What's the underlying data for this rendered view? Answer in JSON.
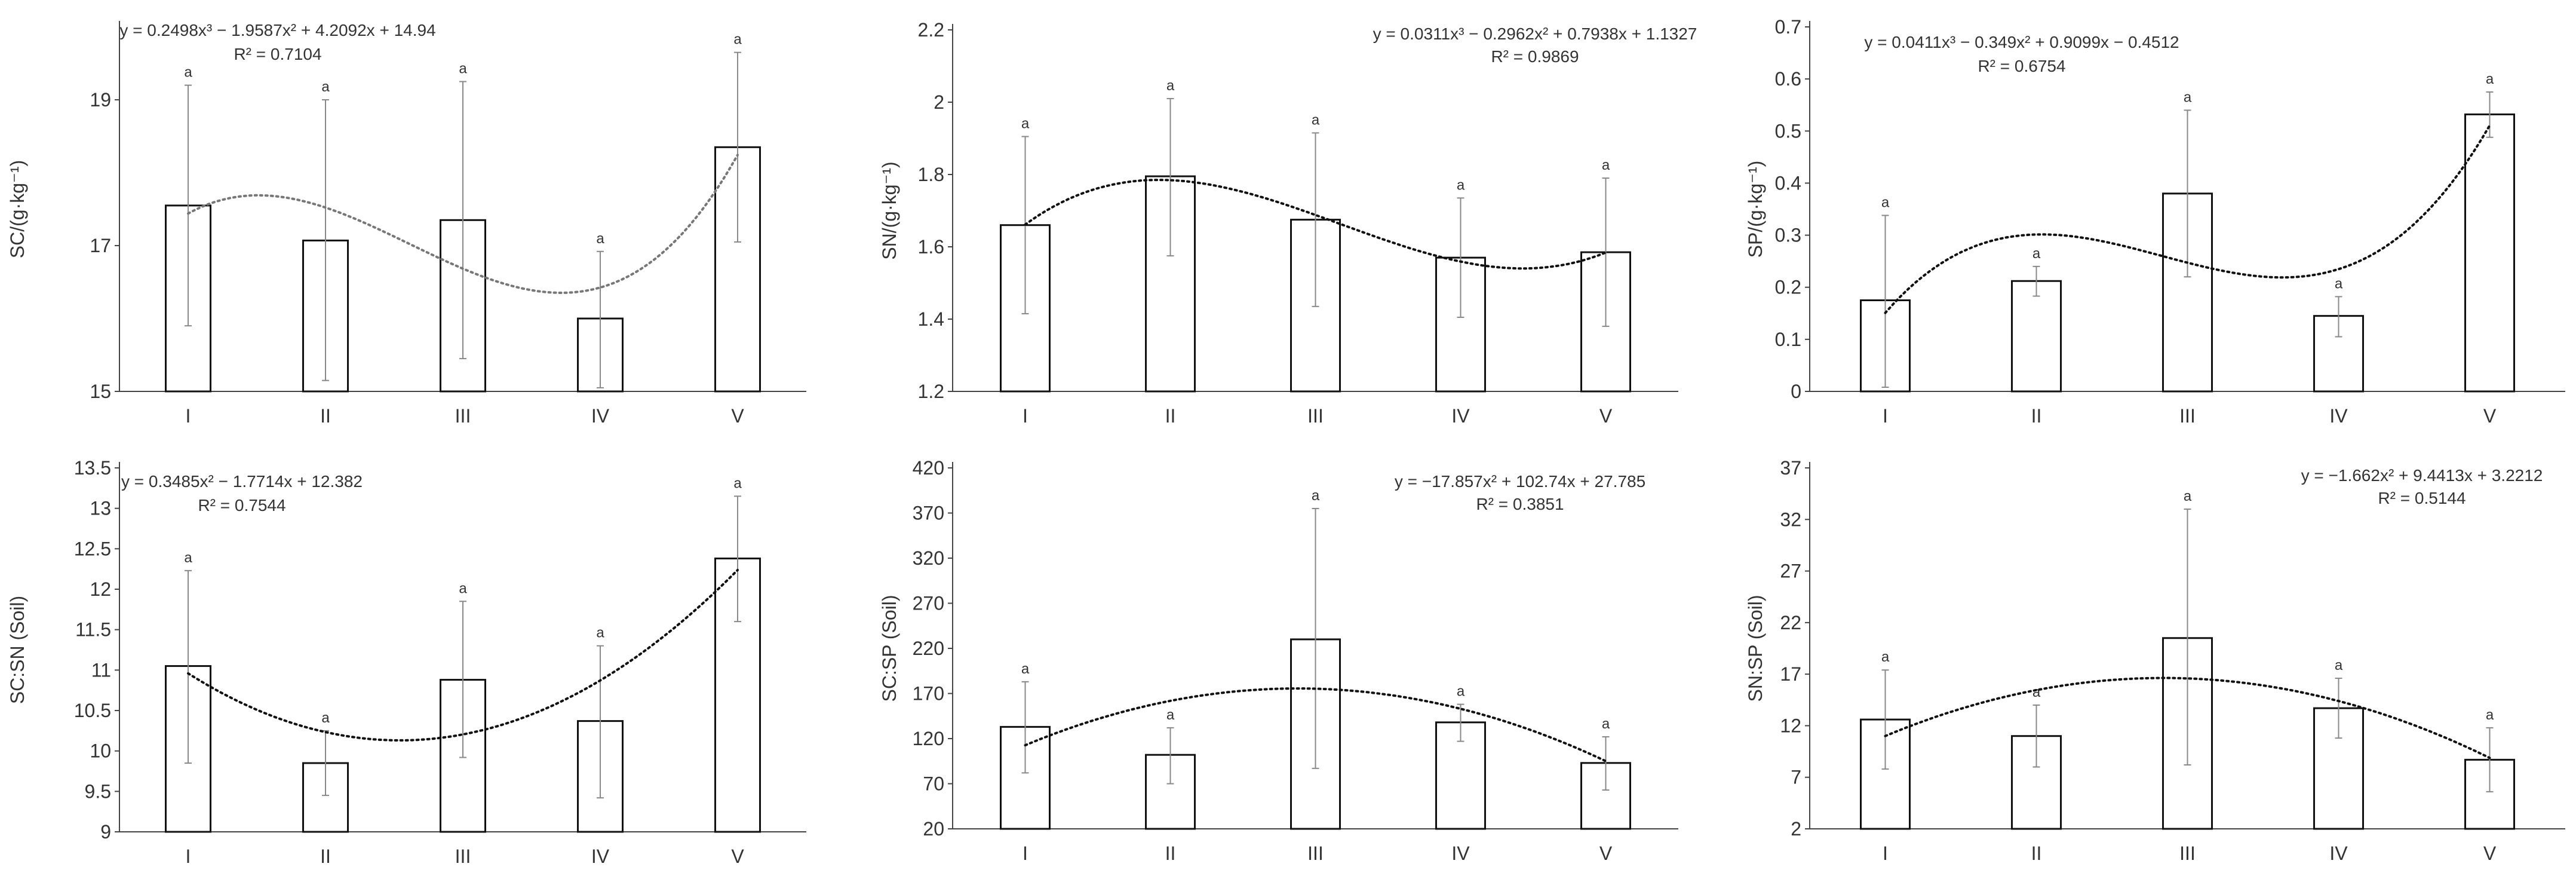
{
  "chart_data": [
    {
      "type": "bar",
      "ylabel": "SC/(g·kg⁻¹)",
      "categories": [
        "I",
        "II",
        "III",
        "IV",
        "V"
      ],
      "values": [
        17.55,
        17.07,
        17.35,
        16.0,
        18.35
      ],
      "error_upper": [
        19.2,
        19.0,
        19.25,
        16.92,
        19.65
      ],
      "error_lower": [
        15.9,
        15.15,
        15.45,
        15.05,
        17.05
      ],
      "sig_letters": [
        "a",
        "a",
        "a",
        "a",
        "a"
      ],
      "ylim": [
        15,
        20
      ],
      "yticks": [
        "15",
        "17",
        "19"
      ],
      "ytick_values": [
        15,
        17,
        19
      ],
      "trend": {
        "degree": 3,
        "coefficients": [
          14.94,
          4.2092,
          -1.9587,
          0.2498
        ],
        "color": "#777777"
      },
      "equation": "y = 0.2498x³ − 1.9587x² + 4.2092x + 14.94",
      "r2": "R² = 0.7104"
    },
    {
      "type": "bar",
      "ylabel": "SN/(g·kg⁻¹)",
      "categories": [
        "I",
        "II",
        "III",
        "IV",
        "V"
      ],
      "values": [
        1.66,
        1.795,
        1.675,
        1.57,
        1.585
      ],
      "error_upper": [
        1.905,
        2.01,
        1.915,
        1.735,
        1.79
      ],
      "error_lower": [
        1.415,
        1.575,
        1.435,
        1.405,
        1.38
      ],
      "sig_letters": [
        "a",
        "a",
        "a",
        "a",
        "a"
      ],
      "ylim": [
        1.2,
        2.2
      ],
      "yticks": [
        "1.2",
        "1.4",
        "1.6",
        "1.8",
        "2",
        "2.2"
      ],
      "ytick_values": [
        1.2,
        1.4,
        1.6,
        1.8,
        2.0,
        2.2
      ],
      "trend": {
        "degree": 3,
        "coefficients": [
          1.1327,
          0.7938,
          -0.2962,
          0.0311
        ],
        "color": "#111111"
      },
      "equation": "y = 0.0311x³ − 0.2962x² + 0.7938x + 1.1327",
      "r2": "R² = 0.9869"
    },
    {
      "type": "bar",
      "ylabel": "SP/(g·kg⁻¹)",
      "categories": [
        "I",
        "II",
        "III",
        "IV",
        "V"
      ],
      "values": [
        0.175,
        0.212,
        0.38,
        0.145,
        0.532
      ],
      "error_upper": [
        0.338,
        0.24,
        0.54,
        0.182,
        0.575
      ],
      "error_lower": [
        0.008,
        0.183,
        0.22,
        0.105,
        0.488
      ],
      "sig_letters": [
        "a",
        "a",
        "a",
        "a",
        "a"
      ],
      "ylim": [
        0,
        0.7
      ],
      "yticks": [
        "0",
        "0.1",
        "0.2",
        "0.3",
        "0.4",
        "0.5",
        "0.6",
        "0.7"
      ],
      "ytick_values": [
        0,
        0.1,
        0.2,
        0.3,
        0.4,
        0.5,
        0.6,
        0.7
      ],
      "trend": {
        "degree": 3,
        "coefficients": [
          -0.4512,
          0.9099,
          -0.349,
          0.0411
        ],
        "color": "#111111"
      },
      "equation": "y = 0.0411x³ − 0.349x² + 0.9099x − 0.4512",
      "r2": "R² = 0.6754"
    },
    {
      "type": "bar",
      "ylabel": "SC:SN (Soil)",
      "categories": [
        "I",
        "II",
        "III",
        "IV",
        "V"
      ],
      "values": [
        11.05,
        9.85,
        10.88,
        10.37,
        12.38
      ],
      "error_upper": [
        12.23,
        10.25,
        11.85,
        11.3,
        13.15
      ],
      "error_lower": [
        9.85,
        9.45,
        9.92,
        9.42,
        11.6
      ],
      "sig_letters": [
        "a",
        "a",
        "a",
        "a",
        "a"
      ],
      "ylim": [
        9,
        13.5
      ],
      "yticks": [
        "9",
        "9.5",
        "10",
        "10.5",
        "11",
        "11.5",
        "12",
        "12.5",
        "13",
        "13.5"
      ],
      "ytick_values": [
        9,
        9.5,
        10,
        10.5,
        11,
        11.5,
        12,
        12.5,
        13,
        13.5
      ],
      "trend": {
        "degree": 2,
        "coefficients": [
          12.382,
          -1.7714,
          0.3485
        ],
        "color": "#111111"
      },
      "equation": "y = 0.3485x² − 1.7714x + 12.382",
      "r2": "R² = 0.7544"
    },
    {
      "type": "bar",
      "ylabel": "SC:SP (Soil)",
      "categories": [
        "I",
        "II",
        "III",
        "IV",
        "V"
      ],
      "values": [
        133,
        102,
        230,
        138,
        93
      ],
      "error_upper": [
        183,
        132,
        375,
        158,
        122
      ],
      "error_lower": [
        82,
        70,
        87,
        117,
        63
      ],
      "sig_letters": [
        "a",
        "a",
        "a",
        "a",
        "a"
      ],
      "ylim": [
        20,
        420
      ],
      "yticks": [
        "20",
        "70",
        "120",
        "170",
        "220",
        "270",
        "320",
        "370",
        "420"
      ],
      "ytick_values": [
        20,
        70,
        120,
        170,
        220,
        270,
        320,
        370,
        420
      ],
      "trend": {
        "degree": 2,
        "coefficients": [
          27.785,
          102.74,
          -17.857
        ],
        "color": "#111111"
      },
      "equation": "y = −17.857x² + 102.74x + 27.785",
      "r2": "R² = 0.3851"
    },
    {
      "type": "bar",
      "ylabel": "SN:SP (Soil)",
      "categories": [
        "I",
        "II",
        "III",
        "IV",
        "V"
      ],
      "values": [
        12.6,
        11.0,
        20.5,
        13.7,
        8.7
      ],
      "error_upper": [
        17.4,
        14.0,
        33.0,
        16.6,
        11.8
      ],
      "error_lower": [
        7.8,
        8.0,
        8.2,
        10.8,
        5.6
      ],
      "sig_letters": [
        "a",
        "a",
        "a",
        "a",
        "a"
      ],
      "ylim": [
        2,
        37
      ],
      "yticks": [
        "2",
        "7",
        "12",
        "17",
        "22",
        "27",
        "32",
        "37"
      ],
      "ytick_values": [
        2,
        7,
        12,
        17,
        22,
        27,
        32,
        37
      ],
      "trend": {
        "degree": 2,
        "coefficients": [
          3.2212,
          9.4413,
          -1.662
        ],
        "color": "#111111"
      },
      "equation": "y = −1.662x² + 9.4413x + 3.2212",
      "r2": "R² = 0.5144"
    }
  ]
}
